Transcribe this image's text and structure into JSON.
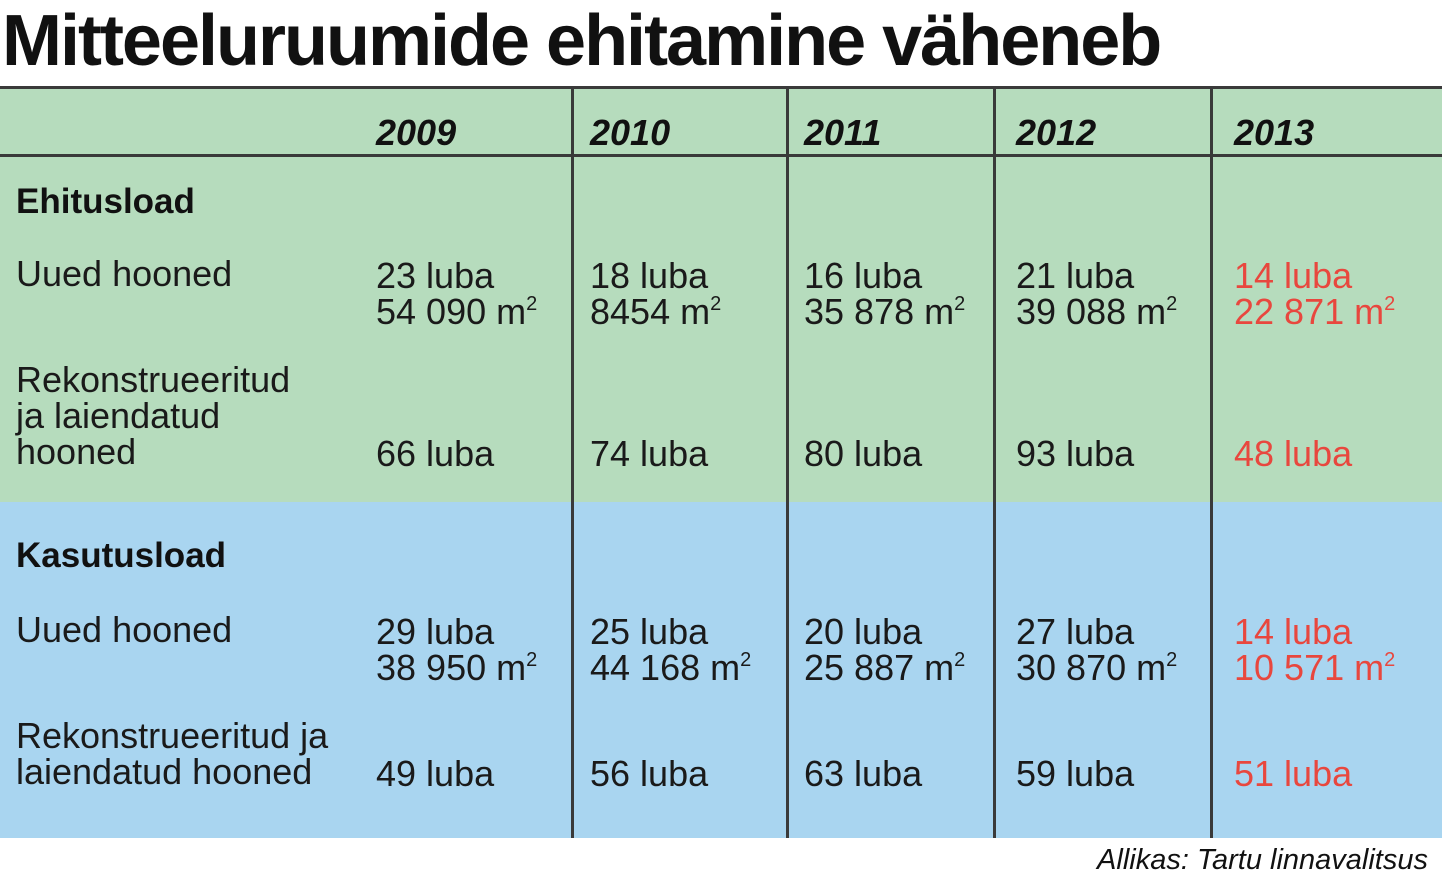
{
  "title": "Mitteeluruumide ehitamine väheneb",
  "source": "Allikas: Tartu linnavalitsus",
  "colors": {
    "green_band": "#b6dcbd",
    "blue_band": "#a9d5f0",
    "highlight": "#e8473e",
    "lines": "#3a3a3a"
  },
  "chart_data": {
    "type": "table",
    "columns": [
      "2009",
      "2010",
      "2011",
      "2012",
      "2013"
    ],
    "highlight_column": "2013",
    "sections": [
      {
        "name": "Ehitusload",
        "rows": [
          {
            "label": "Uued hooned",
            "permits": [
              "23 luba",
              "18 luba",
              "16 luba",
              "21 luba",
              "14 luba"
            ],
            "area_m2": [
              "54 090",
              "8454",
              "35 878",
              "39 088",
              "22 871"
            ]
          },
          {
            "label": "Rekonstrueeritud\nja laiendatud\nhooned",
            "permits": [
              "66 luba",
              "74 luba",
              "80 luba",
              "93 luba",
              "48 luba"
            ]
          }
        ]
      },
      {
        "name": "Kasutusload",
        "rows": [
          {
            "label": "Uued hooned",
            "permits": [
              "29 luba",
              "25 luba",
              "20 luba",
              "27 luba",
              "14 luba"
            ],
            "area_m2": [
              "38 950",
              "44 168",
              "25 887",
              "30 870",
              "10 571"
            ]
          },
          {
            "label": "Rekonstrueeritud ja\nlaiendatud hooned",
            "permits": [
              "49 luba",
              "56 luba",
              "63 luba",
              "59 luba",
              "51 luba"
            ]
          }
        ]
      }
    ],
    "unit": "m",
    "unit_exp": "2"
  }
}
